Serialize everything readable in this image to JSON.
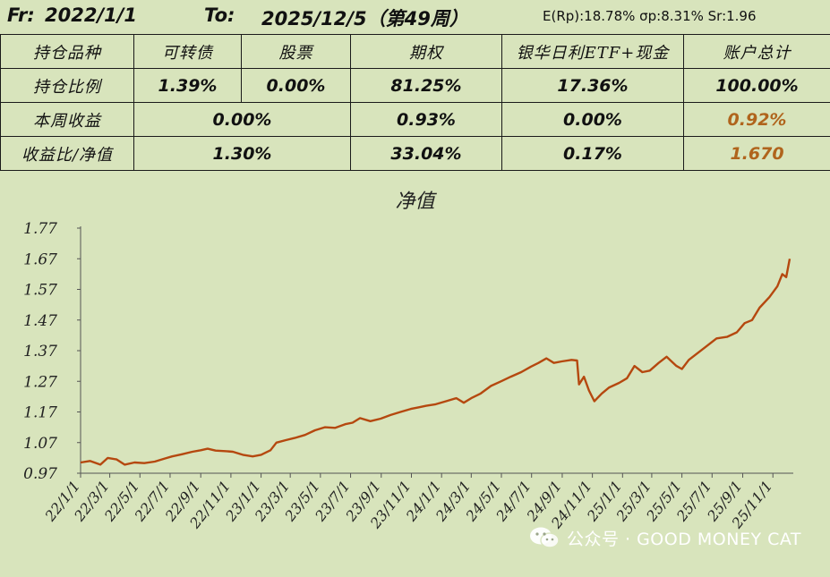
{
  "header": {
    "from_label": "Fr:",
    "from_date": "2022/1/1",
    "to_label": "To:",
    "to_date": "2025/12/5（第49周）",
    "stats": "E(Rp):18.78%  σp:8.31%  Sr:1.96"
  },
  "table": {
    "row1": [
      "持仓品种",
      "可转债",
      "股票",
      "期权",
      "银华日利ETF+现金",
      "账户总计"
    ],
    "row2": [
      "持仓比例",
      "1.39%",
      "0.00%",
      "81.25%",
      "17.36%",
      "100.00%"
    ],
    "row3": [
      "本周收益",
      "0.00%",
      "0.93%",
      "0.00%",
      "0.92%"
    ],
    "row4": [
      "收益比/净值",
      "1.30%",
      "33.04%",
      "0.17%",
      "1.670"
    ]
  },
  "accent_color": "#b0641c",
  "line_color": "#b5480f",
  "background_color": "#d8e4bc",
  "watermark": "公众号 · GOOD MONEY CAT",
  "chart_data": {
    "type": "line",
    "title": "净值",
    "xlabel": "",
    "ylabel": "",
    "ylim": [
      0.97,
      1.77
    ],
    "grid": false,
    "legend": "none",
    "y_ticks": [
      "1.77",
      "1.67",
      "1.57",
      "1.47",
      "1.37",
      "1.27",
      "1.17",
      "1.07",
      "0.97"
    ],
    "x_ticks": [
      "22/1/1",
      "22/3/1",
      "22/5/1",
      "22/7/1",
      "22/9/1",
      "22/11/1",
      "23/1/1",
      "23/3/1",
      "23/5/1",
      "23/7/1",
      "23/9/1",
      "23/11/1",
      "24/1/1",
      "24/3/1",
      "24/5/1",
      "24/7/1",
      "24/9/1",
      "24/11/1",
      "25/1/1",
      "25/3/1",
      "25/5/1",
      "25/7/1",
      "25/9/1",
      "25/11/1"
    ],
    "series": [
      {
        "values": [
          [
            "22/1/1",
            1.005
          ],
          [
            "22/1/20",
            1.01
          ],
          [
            "22/2/10",
            0.998
          ],
          [
            "22/2/25",
            1.02
          ],
          [
            "22/3/15",
            1.015
          ],
          [
            "22/3/31",
            0.998
          ],
          [
            "22/4/20",
            1.005
          ],
          [
            "22/5/10",
            1.003
          ],
          [
            "22/5/31",
            1.008
          ],
          [
            "22/6/20",
            1.018
          ],
          [
            "22/7/5",
            1.025
          ],
          [
            "22/7/25",
            1.032
          ],
          [
            "22/8/15",
            1.04
          ],
          [
            "22/9/1",
            1.045
          ],
          [
            "22/9/15",
            1.05
          ],
          [
            "22/10/1",
            1.044
          ],
          [
            "22/10/20",
            1.042
          ],
          [
            "22/11/5",
            1.04
          ],
          [
            "22/11/25",
            1.03
          ],
          [
            "22/12/15",
            1.025
          ],
          [
            "23/1/1",
            1.03
          ],
          [
            "23/1/20",
            1.045
          ],
          [
            "23/2/1",
            1.07
          ],
          [
            "23/2/20",
            1.078
          ],
          [
            "23/3/10",
            1.085
          ],
          [
            "23/3/31",
            1.095
          ],
          [
            "23/4/20",
            1.11
          ],
          [
            "23/5/10",
            1.12
          ],
          [
            "23/5/31",
            1.118
          ],
          [
            "23/6/20",
            1.13
          ],
          [
            "23/7/5",
            1.135
          ],
          [
            "23/7/20",
            1.15
          ],
          [
            "23/8/10",
            1.14
          ],
          [
            "23/8/31",
            1.148
          ],
          [
            "23/9/20",
            1.16
          ],
          [
            "23/10/10",
            1.17
          ],
          [
            "23/10/31",
            1.18
          ],
          [
            "23/11/15",
            1.185
          ],
          [
            "23/12/1",
            1.19
          ],
          [
            "23/12/20",
            1.195
          ],
          [
            "24/1/10",
            1.205
          ],
          [
            "24/1/31",
            1.215
          ],
          [
            "24/2/15",
            1.2
          ],
          [
            "24/3/1",
            1.215
          ],
          [
            "24/3/20",
            1.23
          ],
          [
            "24/4/10",
            1.255
          ],
          [
            "24/4/30",
            1.27
          ],
          [
            "24/5/20",
            1.285
          ],
          [
            "24/6/10",
            1.3
          ],
          [
            "24/6/30",
            1.318
          ],
          [
            "24/7/15",
            1.33
          ],
          [
            "24/7/31",
            1.345
          ],
          [
            "24/8/15",
            1.33
          ],
          [
            "24/8/31",
            1.335
          ],
          [
            "24/9/20",
            1.34
          ],
          [
            "24/10/1",
            1.338
          ],
          [
            "24/10/5",
            1.26
          ],
          [
            "24/10/15",
            1.285
          ],
          [
            "24/10/25",
            1.24
          ],
          [
            "24/11/5",
            1.205
          ],
          [
            "24/11/20",
            1.23
          ],
          [
            "24/12/5",
            1.25
          ],
          [
            "24/12/25",
            1.265
          ],
          [
            "25/1/10",
            1.28
          ],
          [
            "25/1/25",
            1.32
          ],
          [
            "25/2/10",
            1.3
          ],
          [
            "25/2/25",
            1.305
          ],
          [
            "25/3/15",
            1.33
          ],
          [
            "25/3/31",
            1.35
          ],
          [
            "25/4/10",
            1.335
          ],
          [
            "25/4/20",
            1.32
          ],
          [
            "25/5/1",
            1.31
          ],
          [
            "25/5/15",
            1.34
          ],
          [
            "25/5/31",
            1.36
          ],
          [
            "25/6/20",
            1.385
          ],
          [
            "25/7/10",
            1.41
          ],
          [
            "25/7/31",
            1.415
          ],
          [
            "25/8/20",
            1.43
          ],
          [
            "25/9/5",
            1.46
          ],
          [
            "25/9/20",
            1.47
          ],
          [
            "25/10/5",
            1.51
          ],
          [
            "25/10/25",
            1.545
          ],
          [
            "25/11/10",
            1.58
          ],
          [
            "25/11/20",
            1.62
          ],
          [
            "25/11/28",
            1.61
          ],
          [
            "25/12/5",
            1.67
          ]
        ]
      }
    ]
  }
}
